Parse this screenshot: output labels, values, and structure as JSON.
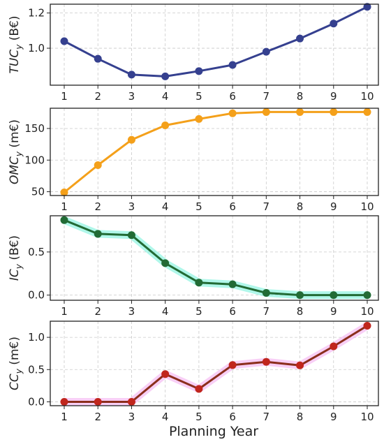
{
  "chart_data": [
    {
      "type": "line",
      "panel": "tuc",
      "ylabel_italic": "TUC",
      "ylabel_sub": "y",
      "ylabel_unit": " (B€)",
      "x": [
        1,
        2,
        3,
        4,
        5,
        6,
        7,
        8,
        9,
        10
      ],
      "series": [
        {
          "values": [
            1.04,
            0.94,
            0.85,
            0.84,
            0.87,
            0.905,
            0.98,
            1.055,
            1.14,
            1.235
          ]
        }
      ],
      "ylim": [
        0.79,
        1.25
      ],
      "yticks": [
        "1.0",
        "1.2"
      ],
      "ytick_values": [
        1.0,
        1.2
      ],
      "color": "#35408f",
      "glow": null,
      "grid": true
    },
    {
      "type": "line",
      "panel": "omc",
      "ylabel_italic": "OMC",
      "ylabel_sub": "y",
      "ylabel_unit": " (m€)",
      "x": [
        1,
        2,
        3,
        4,
        5,
        6,
        7,
        8,
        9,
        10
      ],
      "series": [
        {
          "values": [
            49,
            92,
            132,
            155,
            165,
            174,
            176,
            176,
            176,
            176
          ]
        }
      ],
      "ylim": [
        44,
        182
      ],
      "yticks": [
        "50",
        "100",
        "150"
      ],
      "ytick_values": [
        50,
        100,
        150
      ],
      "color": "#f4a01a",
      "glow": null,
      "grid": true
    },
    {
      "type": "line",
      "panel": "ic",
      "ylabel_italic": "IC",
      "ylabel_sub": "y",
      "ylabel_unit": " (B€)",
      "x": [
        1,
        2,
        3,
        4,
        5,
        6,
        7,
        8,
        9,
        10
      ],
      "series": [
        {
          "values": [
            0.87,
            0.71,
            0.695,
            0.37,
            0.145,
            0.125,
            0.025,
            0.0,
            0.0,
            0.0
          ]
        }
      ],
      "ylim": [
        -0.06,
        0.92
      ],
      "yticks": [
        "0.0",
        "0.5"
      ],
      "ytick_values": [
        0.0,
        0.5
      ],
      "color": "#226b35",
      "glow": "#6ff0d8",
      "grid": true
    },
    {
      "type": "line",
      "panel": "cc",
      "ylabel_italic": "CC",
      "ylabel_sub": "y",
      "ylabel_unit": " (m€)",
      "x": [
        1,
        2,
        3,
        4,
        5,
        6,
        7,
        8,
        9,
        10
      ],
      "series": [
        {
          "values": [
            0.0,
            0.0,
            0.0,
            0.43,
            0.2,
            0.57,
            0.62,
            0.565,
            0.86,
            1.18
          ]
        }
      ],
      "ylim": [
        -0.06,
        1.25
      ],
      "yticks": [
        "0.0",
        "0.5",
        "1.0"
      ],
      "ytick_values": [
        0.0,
        0.5,
        1.0
      ],
      "color": "#8b2e1c",
      "marker_color": "#c0261d",
      "glow": "#f2a7ef",
      "grid": true
    }
  ],
  "xticks": [
    "1",
    "2",
    "3",
    "4",
    "5",
    "6",
    "7",
    "8",
    "9",
    "10"
  ],
  "xlabel": "Planning Year"
}
